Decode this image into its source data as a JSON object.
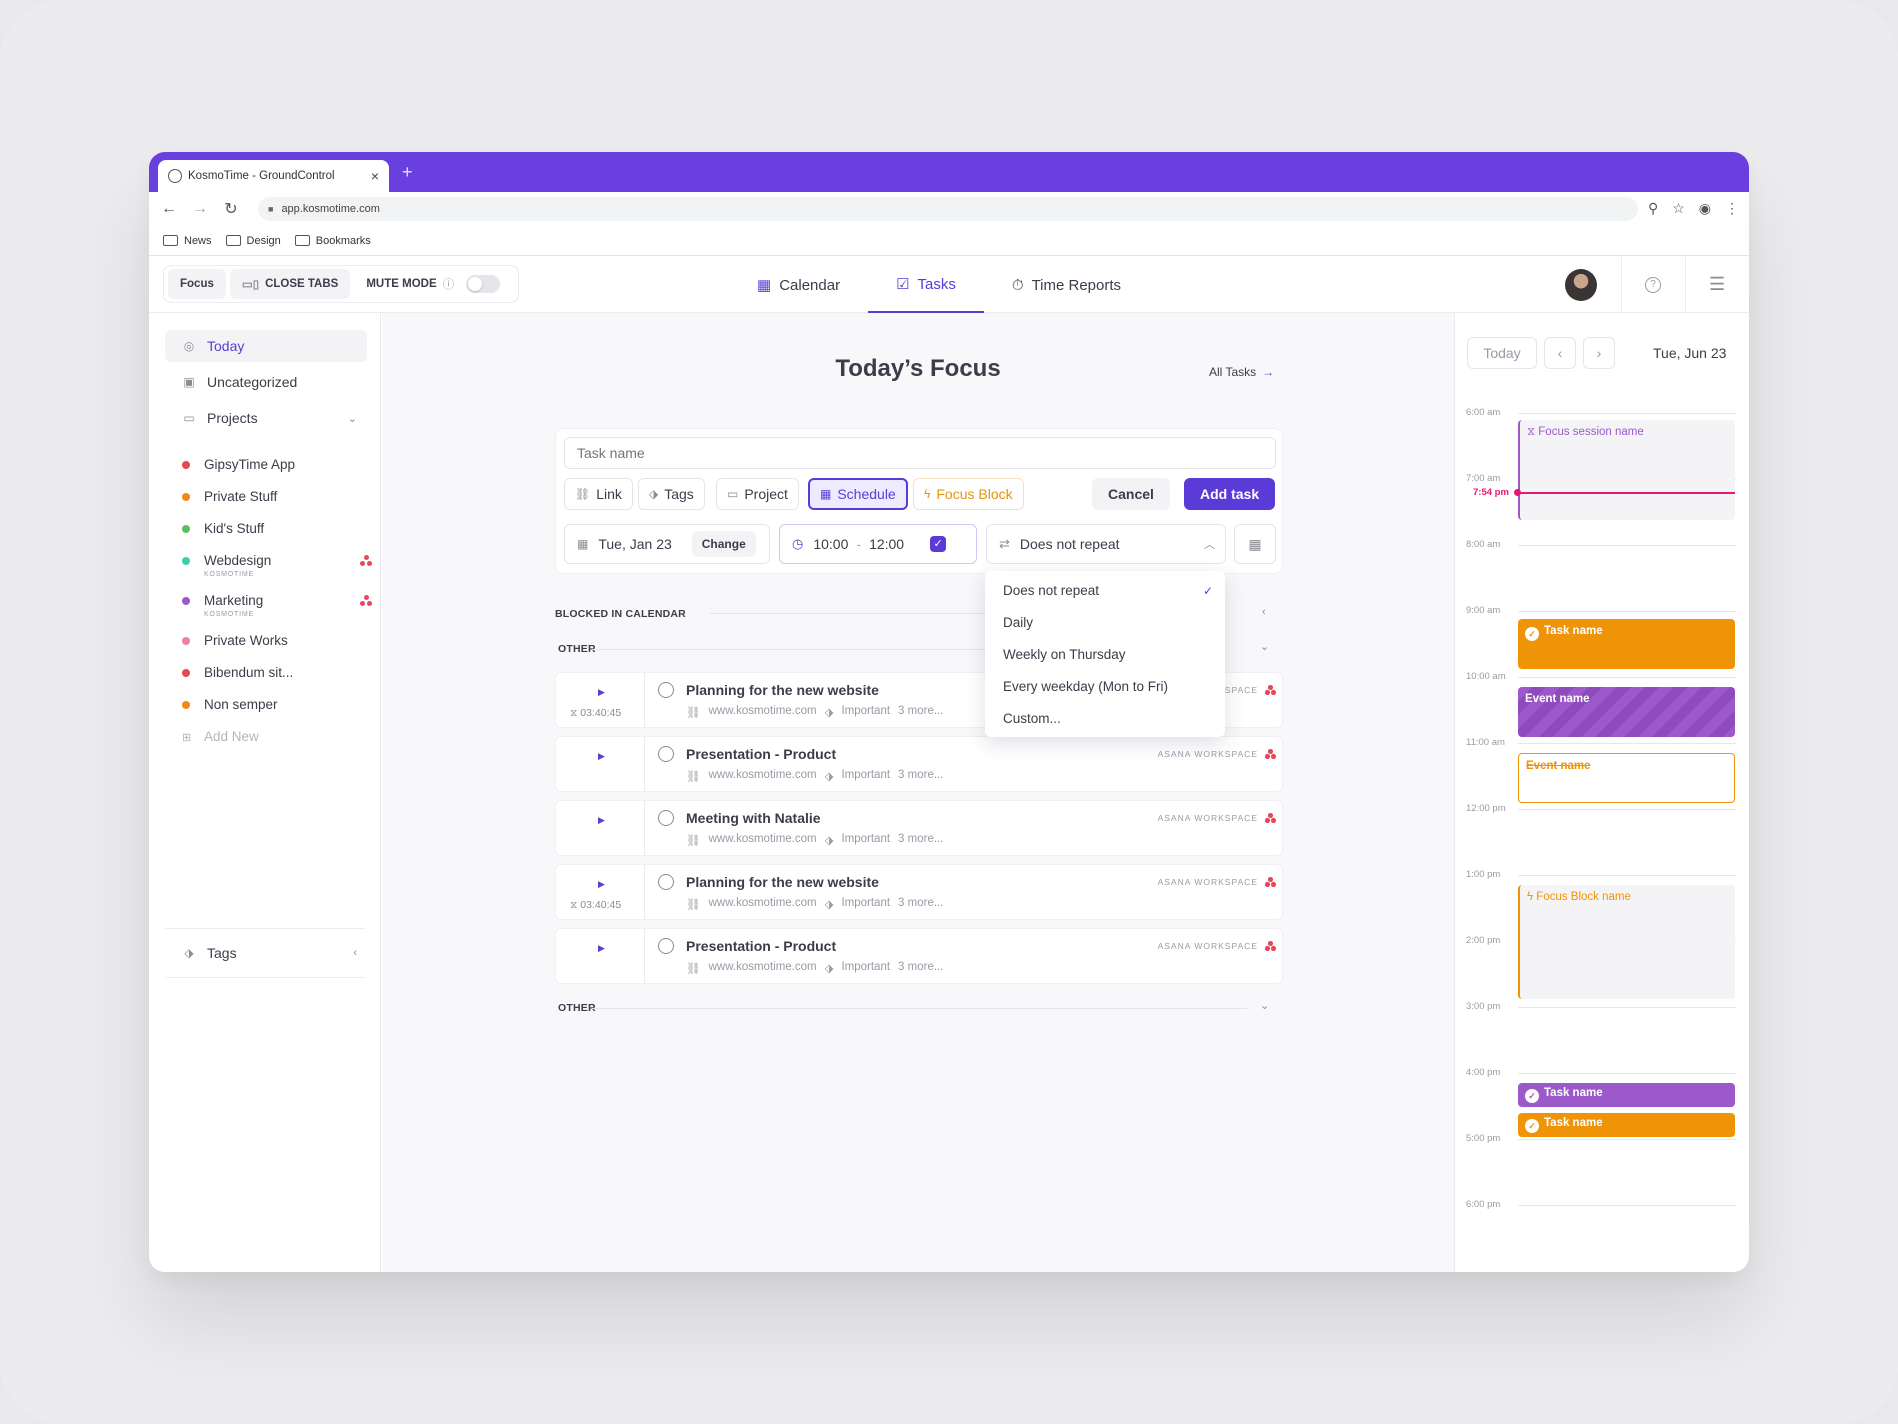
{
  "browser": {
    "tab_title": "KosmoTime - GroundControl",
    "url": "app.kosmotime.com",
    "bookmarks": [
      "News",
      "Design",
      "Bookmarks"
    ]
  },
  "header": {
    "focus_label": "Focus",
    "close_tabs_label": "CLOSE TABS",
    "mute_mode_label": "MUTE MODE",
    "nav": {
      "calendar": "Calendar",
      "tasks": "Tasks",
      "reports": "Time Reports"
    },
    "active_tab": "Tasks"
  },
  "sidebar": {
    "today": "Today",
    "uncategorized": "Uncategorized",
    "projects_label": "Projects",
    "projects": [
      {
        "name": "GipsyTime App",
        "color": "#e8484e"
      },
      {
        "name": "Private Stuff",
        "color": "#ef8a12"
      },
      {
        "name": "Kid's Stuff",
        "color": "#5cbe5e"
      },
      {
        "name": "Webdesign",
        "color": "#3fcfae",
        "sub": "KOSMOTIME",
        "asana": true
      },
      {
        "name": "Marketing",
        "color": "#9b59c9",
        "sub": "KOSMOTIME",
        "asana": true
      },
      {
        "name": "Private Works",
        "color": "#ef7fa9"
      },
      {
        "name": "Bibendum sit...",
        "color": "#e8484e"
      },
      {
        "name": "Non semper",
        "color": "#ef8a12"
      }
    ],
    "add_new": "Add New",
    "tags_label": "Tags"
  },
  "main": {
    "title": "Today’s Focus",
    "all_tasks": "All Tasks",
    "form": {
      "task_placeholder": "Task name",
      "link": "Link",
      "tags": "Tags",
      "project": "Project",
      "schedule": "Schedule",
      "focus_block": "Focus Block",
      "cancel": "Cancel",
      "add_task": "Add task",
      "date": "Tue, Jan 23",
      "change": "Change",
      "time_start": "10:00",
      "time_sep": "-",
      "time_end": "12:00",
      "repeat": "Does not repeat"
    },
    "repeat_options": [
      "Does not repeat",
      "Daily",
      "Weekly on Thursday",
      "Every weekday (Mon to Fri)",
      "Custom..."
    ],
    "repeat_selected": "Does not repeat",
    "section_blocked": "BLOCKED IN CALENDAR",
    "section_other": "OTHER",
    "section_other2": "OTHER",
    "tasks": [
      {
        "name": "Planning for the new website",
        "timer": "03:40:45",
        "link": "www.kosmotime.com",
        "tag": "Important",
        "more": "3 more...",
        "workspace": "ASANA WORKSPACE"
      },
      {
        "name": "Presentation - Product",
        "timer": "",
        "link": "www.kosmotime.com",
        "tag": "Important",
        "more": "3 more...",
        "workspace": "ASANA WORKSPACE"
      },
      {
        "name": "Meeting with Natalie",
        "timer": "",
        "link": "www.kosmotime.com",
        "tag": "Important",
        "more": "3 more...",
        "workspace": "ASANA WORKSPACE"
      },
      {
        "name": "Planning for the new website",
        "timer": "03:40:45",
        "link": "www.kosmotime.com",
        "tag": "Important",
        "more": "3 more...",
        "workspace": "ASANA WORKSPACE"
      },
      {
        "name": "Presentation - Product",
        "timer": "",
        "link": "www.kosmotime.com",
        "tag": "Important",
        "more": "3 more...",
        "workspace": "ASANA WORKSPACE"
      }
    ]
  },
  "calendar": {
    "today_btn": "Today",
    "date": "Tue, Jun 23",
    "hours": [
      "6:00 am",
      "7:00 am",
      "8:00 am",
      "9:00 am",
      "10:00 am",
      "11:00 am",
      "12:00 pm",
      "1:00 pm",
      "2:00 pm",
      "3:00 pm",
      "4:00 pm",
      "5:00 pm",
      "6:00 pm"
    ],
    "now_label": "7:54 pm",
    "events": {
      "focus_session": "Focus session name",
      "task1": "Task name",
      "event1": "Event name",
      "event2": "Event name",
      "focus_block": "Focus Block name",
      "task2": "Task name",
      "task3": "Task name"
    }
  }
}
